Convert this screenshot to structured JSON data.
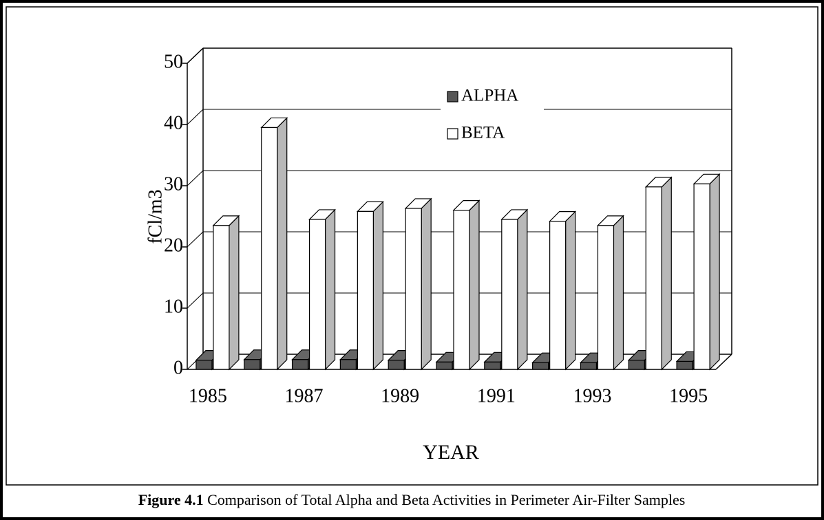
{
  "chart_data": {
    "type": "bar3d",
    "y_label": "fCl/m3",
    "x_label": "YEAR",
    "caption_label": "Figure 4.1",
    "caption": "Comparison of Total Alpha and Beta Activities in Perimeter Air-Filter Samples",
    "categories": [
      "1985",
      null,
      "1987",
      null,
      "1989",
      null,
      "1991",
      null,
      "1993",
      null,
      "1995"
    ],
    "series": [
      {
        "name": "ALPHA",
        "color": "#555555",
        "values": [
          1.5,
          1.6,
          1.6,
          1.6,
          1.5,
          1.2,
          1.2,
          1.1,
          1.1,
          1.5,
          1.3
        ]
      },
      {
        "name": "BETA",
        "color": "#ffffff",
        "values": [
          23.5,
          39.5,
          24.5,
          25.8,
          26.3,
          26,
          24.5,
          24.2,
          23.5,
          29.8,
          30.3
        ]
      }
    ],
    "ylim": [
      0,
      50
    ],
    "yticks": [
      0,
      10,
      20,
      30,
      40,
      50
    ],
    "grid": true
  }
}
